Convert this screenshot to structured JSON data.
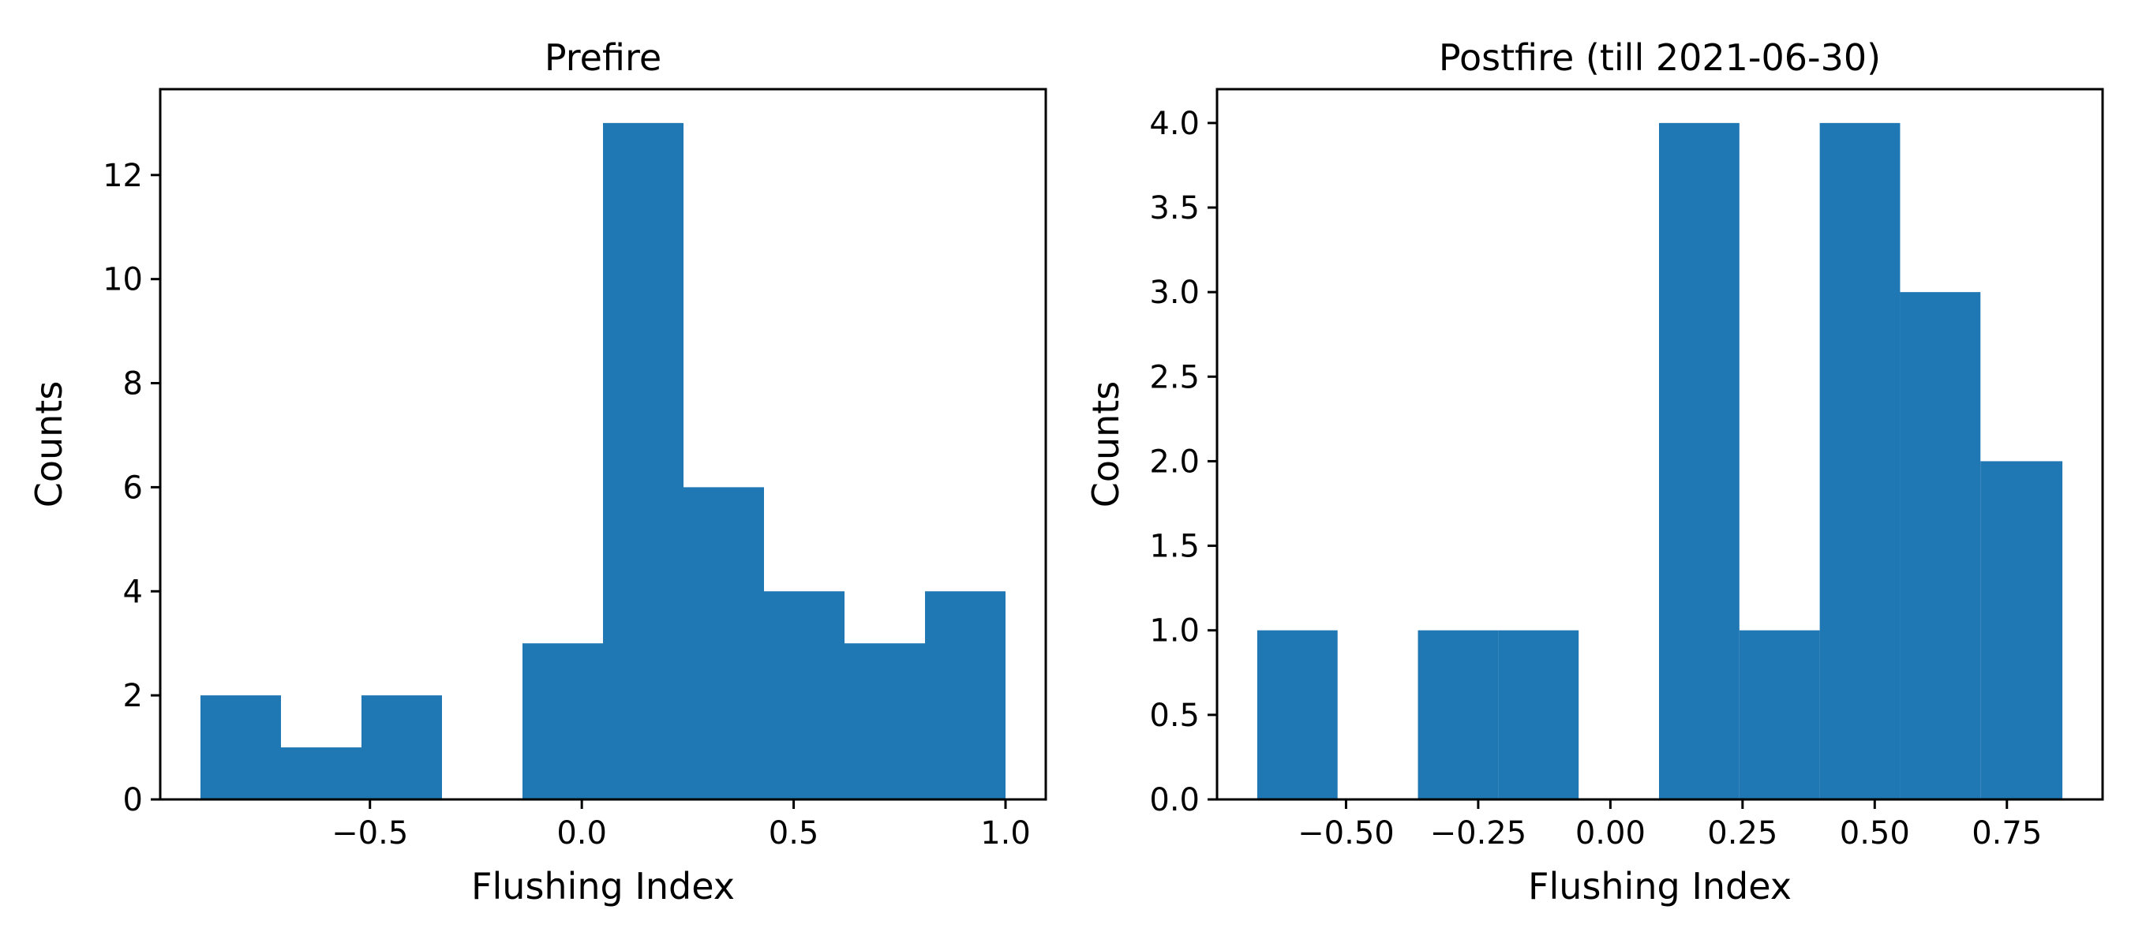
{
  "chart_data": [
    {
      "type": "bar",
      "title": "Prefire",
      "xlabel": "Flushing Index",
      "ylabel": "Counts",
      "xlim": [
        -0.995,
        1.095
      ],
      "ylim": [
        0,
        13.65
      ],
      "xticks": [
        -0.5,
        0.0,
        0.5,
        1.0
      ],
      "xtick_labels": [
        "−0.5",
        "0.0",
        "0.5",
        "1.0"
      ],
      "yticks": [
        0,
        2,
        4,
        6,
        8,
        10,
        12
      ],
      "ytick_labels": [
        "0",
        "2",
        "4",
        "6",
        "8",
        "10",
        "12"
      ],
      "bin_edges": [
        -0.9,
        -0.71,
        -0.52,
        -0.33,
        -0.14,
        0.05,
        0.24,
        0.43,
        0.62,
        0.81,
        1.0
      ],
      "values": [
        2,
        1,
        2,
        0,
        3,
        13,
        6,
        4,
        3,
        4
      ],
      "color": "#1f77b4",
      "grid": false
    },
    {
      "type": "bar",
      "title": "Postfire (till 2021-06-30)",
      "xlabel": "Flushing Index",
      "ylabel": "Counts",
      "xlim": [
        -0.744,
        0.931
      ],
      "ylim": [
        0,
        4.2
      ],
      "xticks": [
        -0.5,
        -0.25,
        0.0,
        0.25,
        0.5,
        0.75
      ],
      "xtick_labels": [
        "−0.50",
        "−0.25",
        "0.00",
        "0.25",
        "0.50",
        "0.75"
      ],
      "yticks": [
        0.0,
        0.5,
        1.0,
        1.5,
        2.0,
        2.5,
        3.0,
        3.5,
        4.0
      ],
      "ytick_labels": [
        "0.0",
        "0.5",
        "1.0",
        "1.5",
        "2.0",
        "2.5",
        "3.0",
        "3.5",
        "4.0"
      ],
      "bin_edges": [
        -0.668,
        -0.516,
        -0.364,
        -0.212,
        -0.06,
        0.092,
        0.244,
        0.396,
        0.548,
        0.7,
        0.855
      ],
      "values": [
        1,
        0,
        1,
        1,
        0,
        4,
        1,
        4,
        3,
        2
      ],
      "color": "#1f77b4",
      "grid": false
    }
  ]
}
